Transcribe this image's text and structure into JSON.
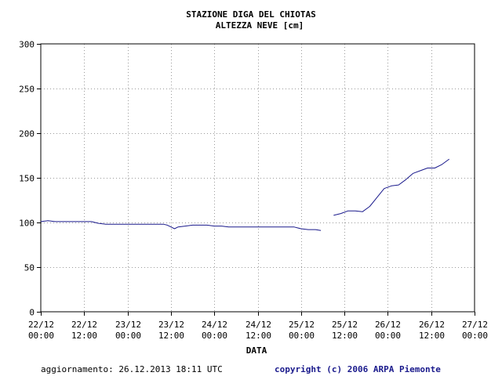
{
  "chart_data": {
    "type": "line",
    "title": "STAZIONE DIGA DEL CHIOTAS",
    "subtitle": "ALTEZZA NEVE [cm]",
    "xlabel": "DATA",
    "ylabel": "",
    "ylim": [
      0,
      300
    ],
    "yticks": [
      0,
      50,
      100,
      150,
      200,
      250,
      300
    ],
    "xlim_hours": [
      0,
      120
    ],
    "xticks": [
      {
        "hour": 0,
        "date": "22/12",
        "time": "00:00"
      },
      {
        "hour": 12,
        "date": "22/12",
        "time": "12:00"
      },
      {
        "hour": 24,
        "date": "23/12",
        "time": "00:00"
      },
      {
        "hour": 36,
        "date": "23/12",
        "time": "12:00"
      },
      {
        "hour": 48,
        "date": "24/12",
        "time": "00:00"
      },
      {
        "hour": 60,
        "date": "24/12",
        "time": "12:00"
      },
      {
        "hour": 72,
        "date": "25/12",
        "time": "00:00"
      },
      {
        "hour": 84,
        "date": "25/12",
        "time": "12:00"
      },
      {
        "hour": 96,
        "date": "26/12",
        "time": "00:00"
      },
      {
        "hour": 108,
        "date": "26/12",
        "time": "12:00"
      },
      {
        "hour": 120,
        "date": "27/12",
        "time": "00:00"
      }
    ],
    "grid": true,
    "line_color": "#1a1a8c",
    "series": [
      {
        "name": "segment-1",
        "x": [
          0,
          2,
          4,
          6,
          8,
          10,
          12,
          14,
          16,
          18,
          20,
          22,
          24,
          26,
          28,
          30,
          32,
          34,
          35,
          36,
          37,
          38,
          40,
          42,
          44,
          46,
          48,
          50,
          52,
          54,
          56,
          58,
          60,
          62,
          64,
          66,
          68,
          70,
          72,
          74,
          76,
          77.5
        ],
        "y": [
          101,
          102,
          101,
          101,
          101,
          101,
          101,
          101,
          99,
          98,
          98,
          98,
          98,
          98,
          98,
          98,
          98,
          98,
          97,
          95,
          93,
          95,
          96,
          97,
          97,
          97,
          96,
          96,
          95,
          95,
          95,
          95,
          95,
          95,
          95,
          95,
          95,
          95,
          93,
          92,
          92,
          91
        ]
      },
      {
        "name": "segment-2",
        "x": [
          81,
          83,
          85,
          87,
          89,
          91,
          93,
          95,
          97,
          99,
          101,
          103,
          105,
          107,
          109,
          111,
          113
        ],
        "y": [
          108,
          110,
          113,
          113,
          112,
          118,
          128,
          138,
          141,
          142,
          148,
          155,
          158,
          161,
          161,
          165,
          171
        ]
      }
    ]
  },
  "footer": {
    "updated": "aggiornamento: 26.12.2013 18:11 UTC",
    "copyright": "copyright (c) 2006 ARPA Piemonte"
  }
}
